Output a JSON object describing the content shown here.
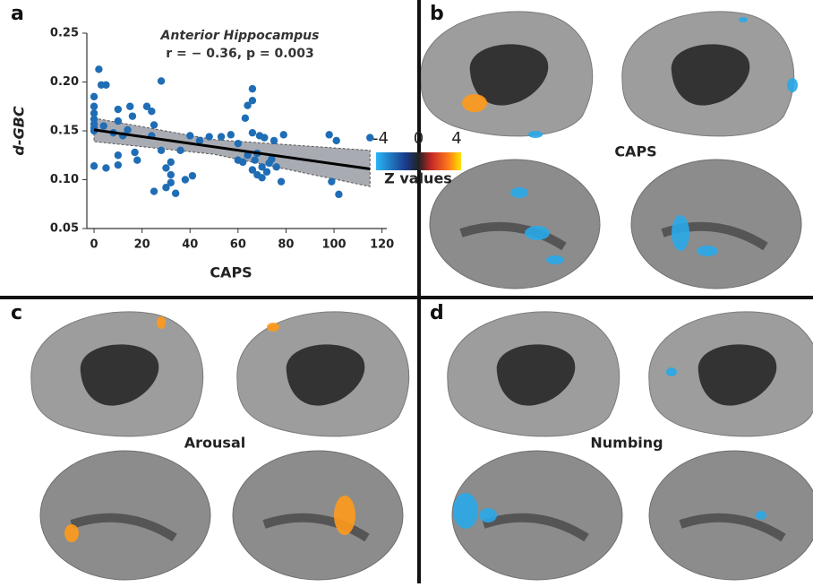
{
  "chart_data": {
    "type": "scatter",
    "title": "Anterior Hippocampus",
    "subtitle": "r = − 0.36, p = 0.003",
    "x_label": "CAPS",
    "y_label": "d-GBC",
    "color": "#1f6db5",
    "xlim": [
      -3,
      122
    ],
    "ylim": [
      0.05,
      0.25
    ],
    "xticks": [
      0,
      20,
      40,
      60,
      80,
      100,
      120
    ],
    "yticks": [
      0.05,
      {
        "value": 0.1,
        "label": "0.10"
      },
      0.15,
      {
        "value": 0.2,
        "label": "0.20"
      },
      0.25
    ],
    "x": [
      0,
      0,
      0,
      0,
      0,
      0,
      0,
      0,
      2,
      3,
      5,
      4,
      5,
      8,
      10,
      10,
      10,
      10,
      12,
      14,
      15,
      16,
      17,
      18,
      22,
      24,
      25,
      24,
      25,
      28,
      28,
      30,
      30,
      32,
      32,
      32,
      34,
      36,
      38,
      40,
      41,
      44,
      48,
      53,
      57,
      60,
      60,
      62,
      63,
      64,
      64,
      66,
      66,
      66,
      66,
      67,
      68,
      68,
      69,
      70,
      70,
      71,
      72,
      73,
      74,
      75,
      76,
      78,
      79,
      98,
      99,
      101,
      102,
      115
    ],
    "values": [
      0.185,
      0.175,
      0.168,
      0.162,
      0.157,
      0.153,
      0.15,
      0.114,
      0.213,
      0.197,
      0.197,
      0.155,
      0.112,
      0.148,
      0.172,
      0.16,
      0.125,
      0.115,
      0.145,
      0.151,
      0.175,
      0.165,
      0.128,
      0.12,
      0.175,
      0.17,
      0.156,
      0.145,
      0.088,
      0.201,
      0.13,
      0.092,
      0.112,
      0.118,
      0.105,
      0.097,
      0.086,
      0.13,
      0.1,
      0.145,
      0.104,
      0.14,
      0.144,
      0.144,
      0.146,
      0.137,
      0.12,
      0.118,
      0.163,
      0.176,
      0.125,
      0.148,
      0.193,
      0.181,
      0.11,
      0.12,
      0.105,
      0.127,
      0.145,
      0.113,
      0.102,
      0.143,
      0.108,
      0.117,
      0.121,
      0.14,
      0.113,
      0.098,
      0.146,
      0.146,
      0.098,
      0.14,
      0.085,
      0.143
    ],
    "fit": {
      "x": [
        0,
        115
      ],
      "values": [
        0.151,
        0.111
      ]
    },
    "band": {
      "x": [
        0,
        50,
        115
      ],
      "upper": [
        0.163,
        0.141,
        0.13
      ],
      "lower": [
        0.139,
        0.126,
        0.093
      ]
    }
  },
  "panels": {
    "a": "a",
    "b": "b",
    "c": "c",
    "d": "d"
  },
  "brain_labels": [
    "CAPS",
    "Arousal",
    "Numbing"
  ],
  "colorbar": {
    "ticks": [
      -4,
      0,
      4
    ],
    "label": "Z values"
  }
}
